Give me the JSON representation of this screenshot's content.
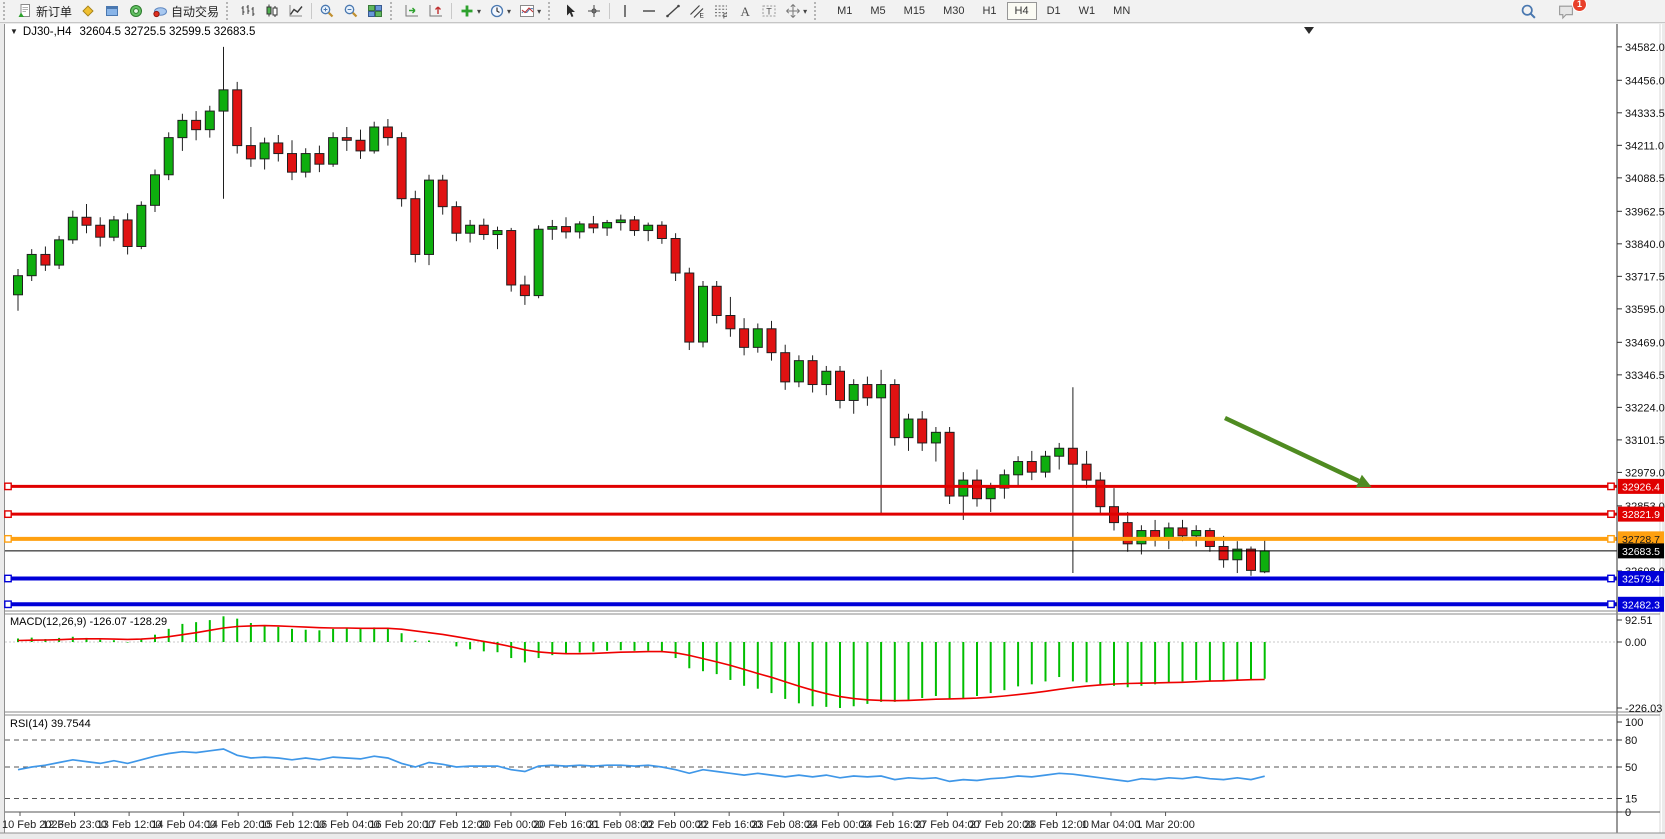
{
  "toolbar": {
    "notification_count": "1",
    "active_timeframe": "H4",
    "timeframes": [
      "M1",
      "M5",
      "M15",
      "M30",
      "H1",
      "H4",
      "D1",
      "W1",
      "MN"
    ],
    "items": [
      {
        "type": "grip"
      },
      {
        "type": "button",
        "name": "new-order",
        "icon": "new-order",
        "label": "新订单"
      },
      {
        "type": "button",
        "name": "market-watch",
        "icon": "market-watch"
      },
      {
        "type": "button",
        "name": "data-window",
        "icon": "navigator"
      },
      {
        "type": "button",
        "name": "strategy-tester",
        "icon": "terminal"
      },
      {
        "type": "button",
        "name": "auto-trading",
        "icon": "autotrade",
        "label": "自动交易"
      },
      {
        "type": "grip"
      },
      {
        "type": "button",
        "name": "bar-chart-mode",
        "icon": "bars"
      },
      {
        "type": "button",
        "name": "candle-chart-mode",
        "icon": "candles"
      },
      {
        "type": "button",
        "name": "line-chart-mode",
        "icon": "linechart"
      },
      {
        "type": "sep"
      },
      {
        "type": "button",
        "name": "zoom-in",
        "icon": "zoom-in"
      },
      {
        "type": "button",
        "name": "zoom-out",
        "icon": "zoom-out"
      },
      {
        "type": "button",
        "name": "tile-windows",
        "icon": "tiles"
      },
      {
        "type": "grip"
      },
      {
        "type": "button",
        "name": "auto-scroll",
        "icon": "autoscroll"
      },
      {
        "type": "button",
        "name": "chart-shift",
        "icon": "chartshift"
      },
      {
        "type": "sep"
      },
      {
        "type": "button",
        "name": "indicators",
        "icon": "indicator-add",
        "caret": true
      },
      {
        "type": "button",
        "name": "periods",
        "icon": "clock",
        "caret": true
      },
      {
        "type": "button",
        "name": "templates",
        "icon": "template",
        "caret": true
      },
      {
        "type": "grip"
      },
      {
        "type": "button",
        "name": "cursor-tool",
        "icon": "cursor"
      },
      {
        "type": "button",
        "name": "crosshair-tool",
        "icon": "crosshair"
      },
      {
        "type": "sep"
      },
      {
        "type": "button",
        "name": "vline-tool",
        "icon": "vline"
      },
      {
        "type": "button",
        "name": "hline-tool",
        "icon": "hline"
      },
      {
        "type": "button",
        "name": "trendline-tool",
        "icon": "trendline"
      },
      {
        "type": "button",
        "name": "channel-tool",
        "icon": "channel"
      },
      {
        "type": "button",
        "name": "fibonacci-tool",
        "icon": "fibo"
      },
      {
        "type": "button",
        "name": "text-tool",
        "icon": "text"
      },
      {
        "type": "button",
        "name": "label-tool",
        "icon": "label"
      },
      {
        "type": "button",
        "name": "arrows-tool",
        "icon": "arrows",
        "caret": true
      },
      {
        "type": "grip"
      }
    ]
  },
  "chart_data": {
    "type": "candlestick",
    "title": "DJ30-,H4",
    "ohlc_display": "32604.5 32725.5 32599.5 32683.5",
    "colors": {
      "bull": "#0eae0e",
      "bear": "#e01212",
      "outline": "#1f1f1f",
      "macd_histogram": "#00be00",
      "macd_signal": "#ee0000",
      "rsi_line": "#3f97e8",
      "arrow": "#4f8b21",
      "bid_line": "#000000"
    },
    "price_axis_ticks": [
      "34582.0",
      "34456.0",
      "34333.5",
      "34211.0",
      "34088.5",
      "33962.5",
      "33840.0",
      "33717.5",
      "33595.0",
      "33469.0",
      "33346.5",
      "33224.0",
      "33101.5",
      "32979.0",
      "32853.0",
      "32608.0"
    ],
    "time_axis_labels": [
      "10 Feb 2023",
      "12 Feb 23:00",
      "13 Feb 12:00",
      "14 Feb 04:00",
      "14 Feb 20:00",
      "15 Feb 12:00",
      "16 Feb 04:00",
      "16 Feb 20:00",
      "17 Feb 12:00",
      "20 Feb 00:00",
      "20 Feb 16:00",
      "21 Feb 08:00",
      "22 Feb 00:00",
      "22 Feb 16:00",
      "23 Feb 08:00",
      "24 Feb 00:00",
      "24 Feb 16:00",
      "27 Feb 04:00",
      "27 Feb 20:00",
      "28 Feb 12:00",
      "1 Mar 04:00",
      "1 Mar 20:00"
    ],
    "hlines": [
      {
        "price": 32926.4,
        "label": "32926.4",
        "color": "#e00000",
        "badge_text_color": "#ffffff",
        "width": 3
      },
      {
        "price": 32821.9,
        "label": "32821.9",
        "color": "#e00000",
        "badge_text_color": "#ffffff",
        "width": 3
      },
      {
        "price": 32728.7,
        "label": "32728.7",
        "color": "#ffa010",
        "badge_text_color": "#1a1a1a",
        "width": 4
      },
      {
        "price": 32579.4,
        "label": "32579.4",
        "color": "#0000d8",
        "badge_text_color": "#ffffff",
        "width": 4
      },
      {
        "price": 32482.3,
        "label": "32482.3",
        "color": "#0000d8",
        "badge_text_color": "#ffffff",
        "width": 4
      }
    ],
    "bid_line": {
      "price": 32683.5,
      "label": "32683.5",
      "color": "#000000",
      "badge_text_color": "#ffffff"
    },
    "trend_arrow": {
      "bar1": 88.1,
      "price1": 33184,
      "bar2": 98.8,
      "price2": 32924
    },
    "candles": [
      [
        33648,
        33745,
        33588,
        33720
      ],
      [
        33720,
        33820,
        33700,
        33800
      ],
      [
        33800,
        33830,
        33738,
        33760
      ],
      [
        33760,
        33870,
        33745,
        33855
      ],
      [
        33855,
        33965,
        33840,
        33940
      ],
      [
        33940,
        33990,
        33880,
        33910
      ],
      [
        33910,
        33940,
        33830,
        33865
      ],
      [
        33865,
        33945,
        33850,
        33930
      ],
      [
        33930,
        33955,
        33800,
        33830
      ],
      [
        33830,
        34000,
        33820,
        33985
      ],
      [
        33985,
        34120,
        33960,
        34100
      ],
      [
        34100,
        34260,
        34080,
        34240
      ],
      [
        34240,
        34330,
        34190,
        34305
      ],
      [
        34305,
        34340,
        34230,
        34270
      ],
      [
        34270,
        34360,
        34240,
        34340
      ],
      [
        34340,
        34582,
        34010,
        34420
      ],
      [
        34420,
        34450,
        34180,
        34210
      ],
      [
        34210,
        34280,
        34130,
        34160
      ],
      [
        34160,
        34240,
        34120,
        34220
      ],
      [
        34220,
        34250,
        34150,
        34180
      ],
      [
        34180,
        34230,
        34080,
        34110
      ],
      [
        34110,
        34200,
        34090,
        34180
      ],
      [
        34180,
        34210,
        34110,
        34140
      ],
      [
        34140,
        34260,
        34130,
        34240
      ],
      [
        34240,
        34280,
        34190,
        34230
      ],
      [
        34230,
        34270,
        34160,
        34190
      ],
      [
        34190,
        34300,
        34180,
        34280
      ],
      [
        34280,
        34310,
        34210,
        34240
      ],
      [
        34240,
        34260,
        33980,
        34010
      ],
      [
        34010,
        34040,
        33770,
        33800
      ],
      [
        33800,
        34100,
        33760,
        34080
      ],
      [
        34080,
        34100,
        33950,
        33980
      ],
      [
        33980,
        34000,
        33850,
        33880
      ],
      [
        33880,
        33930,
        33845,
        33910
      ],
      [
        33910,
        33935,
        33855,
        33875
      ],
      [
        33875,
        33905,
        33820,
        33890
      ],
      [
        33890,
        33900,
        33660,
        33685
      ],
      [
        33685,
        33720,
        33610,
        33645
      ],
      [
        33645,
        33910,
        33635,
        33895
      ],
      [
        33895,
        33930,
        33855,
        33905
      ],
      [
        33905,
        33940,
        33860,
        33885
      ],
      [
        33885,
        33925,
        33860,
        33915
      ],
      [
        33915,
        33945,
        33880,
        33900
      ],
      [
        33900,
        33930,
        33870,
        33920
      ],
      [
        33920,
        33950,
        33890,
        33930
      ],
      [
        33930,
        33945,
        33870,
        33890
      ],
      [
        33890,
        33920,
        33850,
        33910
      ],
      [
        33910,
        33925,
        33840,
        33860
      ],
      [
        33860,
        33880,
        33700,
        33730
      ],
      [
        33730,
        33750,
        33440,
        33470
      ],
      [
        33470,
        33700,
        33450,
        33680
      ],
      [
        33680,
        33700,
        33540,
        33570
      ],
      [
        33570,
        33640,
        33490,
        33520
      ],
      [
        33520,
        33560,
        33420,
        33450
      ],
      [
        33450,
        33540,
        33430,
        33520
      ],
      [
        33520,
        33550,
        33400,
        33430
      ],
      [
        33430,
        33460,
        33290,
        33320
      ],
      [
        33320,
        33420,
        33300,
        33400
      ],
      [
        33400,
        33420,
        33280,
        33310
      ],
      [
        33310,
        33380,
        33270,
        33360
      ],
      [
        33360,
        33380,
        33220,
        33250
      ],
      [
        33250,
        33330,
        33200,
        33310
      ],
      [
        33310,
        33340,
        33230,
        33260
      ],
      [
        33260,
        33365,
        32820,
        33310
      ],
      [
        33310,
        33330,
        33080,
        33110
      ],
      [
        33110,
        33200,
        33060,
        33180
      ],
      [
        33180,
        33210,
        33060,
        33090
      ],
      [
        33090,
        33150,
        33020,
        33130
      ],
      [
        33130,
        33150,
        32860,
        32890
      ],
      [
        32890,
        32980,
        32800,
        32950
      ],
      [
        32950,
        32990,
        32850,
        32880
      ],
      [
        32880,
        32940,
        32830,
        32920
      ],
      [
        32920,
        32990,
        32880,
        32970
      ],
      [
        32970,
        33040,
        32930,
        33020
      ],
      [
        33020,
        33060,
        32950,
        32980
      ],
      [
        32980,
        33060,
        32960,
        33040
      ],
      [
        33040,
        33090,
        32990,
        33070
      ],
      [
        33070,
        33300,
        32600,
        33010
      ],
      [
        33010,
        33060,
        32920,
        32950
      ],
      [
        32950,
        32980,
        32820,
        32850
      ],
      [
        32850,
        32920,
        32760,
        32790
      ],
      [
        32790,
        32830,
        32680,
        32710
      ],
      [
        32710,
        32780,
        32670,
        32760
      ],
      [
        32760,
        32800,
        32700,
        32730
      ],
      [
        32730,
        32790,
        32690,
        32770
      ],
      [
        32770,
        32800,
        32720,
        32740
      ],
      [
        32740,
        32780,
        32700,
        32760
      ],
      [
        32760,
        32770,
        32680,
        32700
      ],
      [
        32700,
        32740,
        32620,
        32650
      ],
      [
        32650,
        32720,
        32600,
        32690
      ],
      [
        32690,
        32700,
        32590,
        32610
      ],
      [
        32604.5,
        32725.5,
        32599.5,
        32683.5
      ]
    ],
    "indicators": {
      "macd": {
        "label": "MACD(12,26,9) -126.07 -128.29",
        "axis_labels": [
          "92.51",
          "0.00",
          "-226.03"
        ],
        "histogram": [
          12,
          15,
          10,
          14,
          18,
          14,
          8,
          6,
          -2,
          10,
          25,
          45,
          62,
          68,
          75,
          88,
          80,
          65,
          58,
          52,
          45,
          42,
          40,
          45,
          48,
          45,
          50,
          48,
          30,
          5,
          5,
          0,
          -15,
          -25,
          -32,
          -35,
          -55,
          -70,
          -55,
          -45,
          -40,
          -36,
          -33,
          -30,
          -28,
          -30,
          -30,
          -35,
          -55,
          -90,
          -100,
          -110,
          -130,
          -150,
          -160,
          -175,
          -195,
          -210,
          -220,
          -222,
          -226,
          -220,
          -212,
          -205,
          -205,
          -198,
          -192,
          -185,
          -195,
          -192,
          -185,
          -175,
          -165,
          -152,
          -145,
          -135,
          -120,
          -135,
          -138,
          -145,
          -150,
          -155,
          -150,
          -145,
          -138,
          -135,
          -130,
          -132,
          -135,
          -130,
          -128,
          -126
        ],
        "signal": [
          5,
          6,
          7,
          8,
          10,
          11,
          11,
          10,
          9,
          10,
          13,
          18,
          25,
          32,
          40,
          48,
          53,
          55,
          56,
          55,
          53,
          51,
          49,
          48,
          48,
          47,
          47,
          47,
          44,
          38,
          32,
          26,
          18,
          10,
          2,
          -6,
          -16,
          -27,
          -34,
          -38,
          -40,
          -40,
          -39,
          -37,
          -35,
          -34,
          -33,
          -33,
          -37,
          -46,
          -57,
          -68,
          -80,
          -94,
          -108,
          -121,
          -136,
          -151,
          -165,
          -177,
          -187,
          -194,
          -198,
          -200,
          -201,
          -200,
          -198,
          -196,
          -195,
          -194,
          -192,
          -189,
          -185,
          -180,
          -175,
          -169,
          -162,
          -156,
          -151,
          -147,
          -144,
          -142,
          -141,
          -140,
          -139,
          -138,
          -136,
          -134,
          -133,
          -131,
          -129,
          -128.3
        ]
      },
      "rsi": {
        "label": "RSI(14) 39.7544",
        "axis_labels": [
          "100",
          "80",
          "50",
          "15",
          "0"
        ],
        "levels": [
          80,
          50,
          15
        ],
        "values": [
          47,
          50,
          52,
          55,
          58,
          56,
          54,
          57,
          54,
          58,
          62,
          65,
          67,
          66,
          68,
          70,
          63,
          60,
          61,
          60,
          58,
          60,
          58,
          61,
          60,
          59,
          62,
          60,
          54,
          50,
          55,
          53,
          50,
          51,
          51,
          51,
          47,
          45,
          51,
          52,
          51,
          52,
          51,
          52,
          52,
          51,
          52,
          50,
          47,
          43,
          47,
          45,
          43,
          41,
          43,
          41,
          39,
          41,
          39,
          41,
          38,
          40,
          39,
          40,
          36,
          38,
          37,
          38,
          34,
          36,
          35,
          37,
          38,
          40,
          39,
          41,
          43,
          42,
          40,
          38,
          36,
          34,
          37,
          36,
          38,
          37,
          39,
          37,
          36,
          38,
          36,
          39.75
        ]
      }
    }
  }
}
